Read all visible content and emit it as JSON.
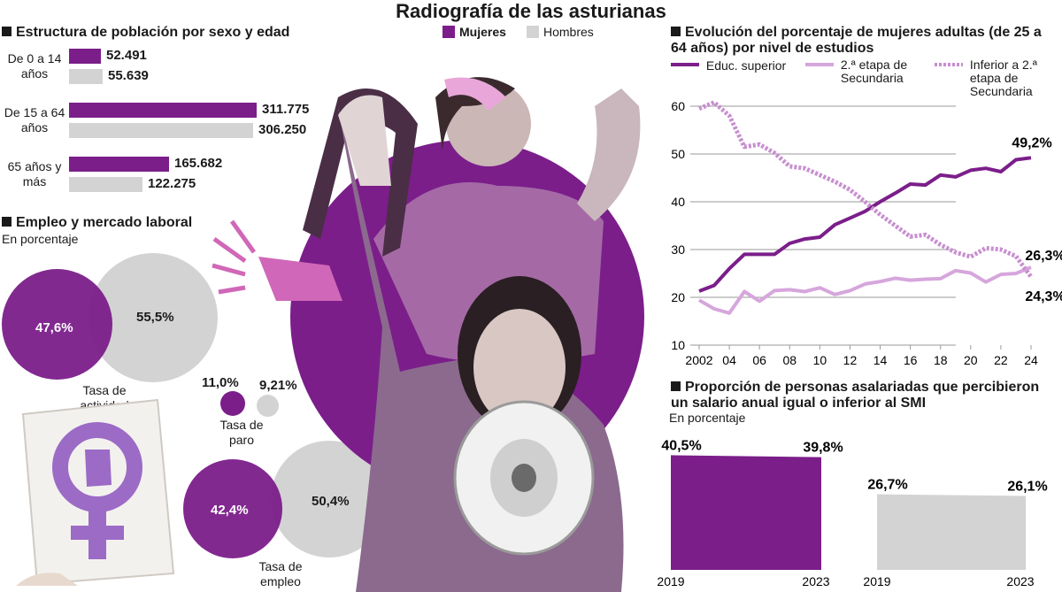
{
  "title": "Radiografía de las asturianas",
  "legend": {
    "mujeres": "Mujeres",
    "hombres": "Hombres"
  },
  "colors": {
    "mujeres": "#7b1e8a",
    "hombres": "#d3d3d3",
    "secundaria": "#d6a6dc",
    "inferior": "#c88fd0"
  },
  "poblacion": {
    "title": "Estructura de población por sexo y edad",
    "groups": [
      {
        "label": "De 0 a 14 años",
        "mujeres": "52.491",
        "hombres": "55.639"
      },
      {
        "label": "De 15 a 64 años",
        "mujeres": "311.775",
        "hombres": "306.250"
      },
      {
        "label": "65 años y más",
        "mujeres": "165.682",
        "hombres": "122.275"
      }
    ]
  },
  "empleo": {
    "title": "Empleo y mercado laboral",
    "subtitle": "En porcentaje",
    "actividad": {
      "label": "Tasa de actividad",
      "mujeres": "47,6%",
      "hombres": "55,5%"
    },
    "paro": {
      "label": "Tasa de paro",
      "mujeres": "11,0%",
      "hombres": "9,21%"
    },
    "empleo": {
      "label": "Tasa de empleo",
      "mujeres": "42,4%",
      "hombres": "50,4%"
    }
  },
  "chart_data": [
    {
      "type": "bar",
      "title": "Estructura de población por sexo y edad",
      "categories": [
        "De 0 a 14 años",
        "De 15 a 64 años",
        "65 años y más"
      ],
      "series": [
        {
          "name": "Mujeres",
          "values": [
            52491,
            311775,
            165682
          ]
        },
        {
          "name": "Hombres",
          "values": [
            55639,
            306250,
            122275
          ]
        }
      ]
    },
    {
      "type": "line",
      "title": "Evolución del porcentaje de mujeres adultas (de 25 a 64 años) por nivel de estudios",
      "x": [
        2002,
        2003,
        2004,
        2005,
        2006,
        2007,
        2008,
        2009,
        2010,
        2011,
        2012,
        2013,
        2014,
        2015,
        2016,
        2017,
        2018,
        2019,
        2020,
        2021,
        2022,
        2023,
        2024
      ],
      "xticks": [
        "2002",
        "04",
        "06",
        "08",
        "10",
        "12",
        "14",
        "16",
        "18",
        "20",
        "22",
        "24"
      ],
      "yticks": [
        "10",
        "20",
        "30",
        "40",
        "50",
        "60"
      ],
      "ylim": [
        10,
        60
      ],
      "grid": true,
      "series": [
        {
          "name": "Educ. superior",
          "style": "solid",
          "values": [
            21.3,
            22.5,
            26,
            29,
            29,
            29,
            31.3,
            32.2,
            32.6,
            35.2,
            36.6,
            38,
            40,
            41.8,
            43.7,
            43.5,
            45.6,
            45.2,
            46.6,
            47,
            46.3,
            48.8,
            49.2
          ]
        },
        {
          "name": "2.ª etapa de Secundaria",
          "style": "solid-light",
          "values": [
            19.4,
            17.6,
            16.7,
            21.2,
            19.2,
            21.4,
            21.6,
            21.2,
            22,
            20.6,
            21.4,
            22.8,
            23.3,
            24,
            23.6,
            23.8,
            23.9,
            25.6,
            25.1,
            23.2,
            24.8,
            25,
            26.3
          ]
        },
        {
          "name": "Inferior a 2.ª etapa de Secundaria",
          "style": "dotted",
          "values": [
            59.5,
            60.8,
            58,
            51.5,
            52,
            50.2,
            47.4,
            47,
            45.6,
            44.2,
            42.5,
            40,
            37.3,
            35,
            32.7,
            33.1,
            31,
            29.4,
            28.5,
            30.3,
            30,
            28.6,
            24.3
          ]
        }
      ],
      "labels": {
        "superior_end": "49,2%",
        "secundaria_end": "26,3%",
        "inferior_end": "24,3%"
      }
    },
    {
      "type": "bar",
      "title": "Proporción de personas asalariadas que percibieron un salario anual igual o inferior al SMI",
      "subtitle": "En porcentaje",
      "categories": [
        "2019",
        "2023"
      ],
      "series": [
        {
          "name": "Mujeres",
          "values": [
            40.5,
            39.8
          ],
          "labels": [
            "40,5%",
            "39,8%"
          ]
        },
        {
          "name": "Hombres",
          "values": [
            26.7,
            26.1
          ],
          "labels": [
            "26,7%",
            "26,1%"
          ]
        }
      ]
    }
  ]
}
